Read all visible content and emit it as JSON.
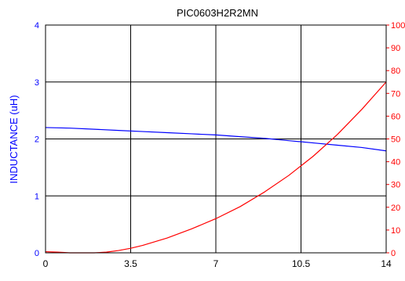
{
  "chart_data": {
    "type": "line",
    "title": "PIC0603H2R2MN",
    "xlabel": "",
    "ylabel": "INDUCTANCE (uH)",
    "y2label": "",
    "xlim": [
      0,
      14
    ],
    "ylim": [
      0,
      4
    ],
    "y2lim": [
      0,
      100
    ],
    "x_ticks": [
      "0",
      "3.5",
      "7",
      "10.5",
      "14"
    ],
    "y_ticks": [
      "0",
      "1",
      "2",
      "3",
      "4"
    ],
    "y2_ticks": [
      "0",
      "10",
      "20",
      "30",
      "40",
      "50",
      "60",
      "70",
      "80",
      "90",
      "100"
    ],
    "grid": true,
    "legend": "none",
    "colors": {
      "left_axis": "#0000ff",
      "right_axis": "#ff0000",
      "grid": "#000000"
    },
    "series": [
      {
        "axis": "left",
        "color": "#0000ff",
        "x": [
          0,
          1,
          2,
          3,
          4,
          5,
          6,
          7,
          8,
          9,
          10,
          11,
          12,
          13,
          14
        ],
        "values": [
          2.2,
          2.19,
          2.17,
          2.15,
          2.13,
          2.11,
          2.09,
          2.07,
          2.04,
          2.01,
          1.97,
          1.93,
          1.89,
          1.85,
          1.79
        ]
      },
      {
        "axis": "right",
        "color": "#ff0000",
        "x": [
          0,
          0.5,
          1,
          1.5,
          2,
          2.5,
          3,
          3.5,
          4,
          5,
          6,
          7,
          8,
          9,
          10,
          11,
          12,
          13,
          14
        ],
        "values": [
          0.5,
          0.3,
          0,
          0,
          0,
          0.3,
          1.0,
          2.0,
          3.3,
          6.5,
          10.5,
          15.0,
          20.3,
          26.7,
          34.0,
          42.4,
          52.0,
          63.0,
          75.0
        ]
      }
    ]
  }
}
